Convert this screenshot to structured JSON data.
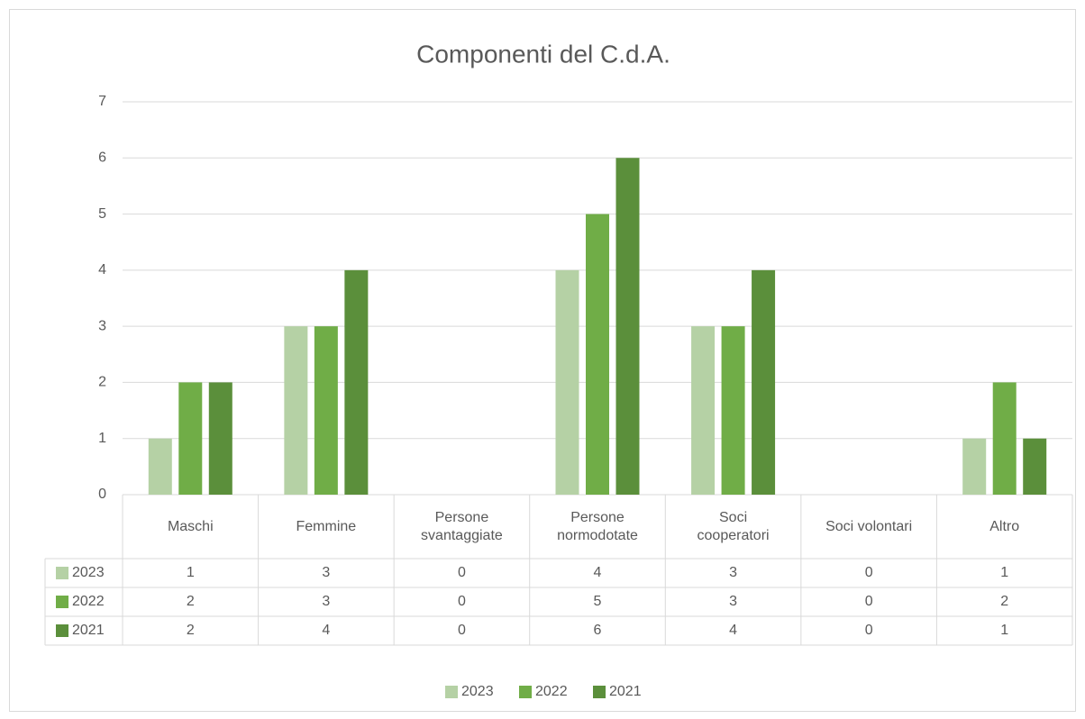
{
  "chart_data": {
    "type": "bar",
    "title": "Componenti del C.d.A.",
    "categories": [
      "Maschi",
      "Femmine",
      "Persone svantaggiate",
      "Persone normodotate",
      "Soci cooperatori",
      "Soci volontari",
      "Altro"
    ],
    "series": [
      {
        "name": "2023",
        "color": "#b5d1a5",
        "values": [
          1,
          3,
          0,
          4,
          3,
          0,
          1
        ]
      },
      {
        "name": "2022",
        "color": "#70ad47",
        "values": [
          2,
          3,
          0,
          5,
          3,
          0,
          2
        ]
      },
      {
        "name": "2021",
        "color": "#5b8f3b",
        "values": [
          2,
          4,
          0,
          6,
          4,
          0,
          1
        ]
      }
    ],
    "ylim": [
      0,
      7
    ],
    "yticks": [
      0,
      1,
      2,
      3,
      4,
      5,
      6,
      7
    ],
    "grid": true,
    "legend": "bottom"
  }
}
